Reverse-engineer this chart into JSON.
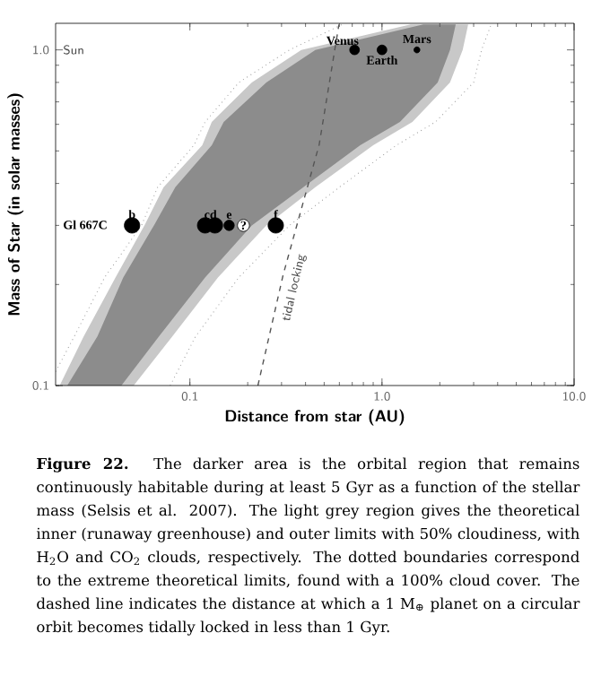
{
  "chart_data": {
    "type": "area",
    "log": "xy",
    "xlabel": "Distance from star   (AU)",
    "ylabel": "Mass of Star (in solar masses)",
    "xlim": [
      0.02,
      10
    ],
    "ylim": [
      0.1,
      1.2
    ],
    "xticks": [
      0.1,
      {
        "value": 1,
        "label": "1.0"
      },
      {
        "value": 10,
        "label": "10.0"
      }
    ],
    "yticks": [
      0.1,
      {
        "value": 1,
        "label": "1.0"
      }
    ],
    "series": [
      {
        "color": "#c8c8c8",
        "x": [
          0.021,
          0.028,
          0.041,
          0.058,
          0.073,
          0.116,
          0.13,
          0.21,
          0.38,
          1.41,
          2.81,
          2.63,
          2.26,
          1.44,
          0.9,
          0.45,
          0.25,
          0.14,
          0.081,
          0.051
        ],
        "values": [
          0.1,
          0.14,
          0.21,
          0.3,
          0.39,
          0.52,
          0.61,
          0.8,
          1.0,
          1.19,
          1.19,
          1.0,
          0.8,
          0.61,
          0.52,
          0.39,
          0.3,
          0.21,
          0.14,
          0.1
        ]
      },
      {
        "color": "#8c8c8c",
        "x": [
          0.023,
          0.033,
          0.045,
          0.065,
          0.084,
          0.13,
          0.15,
          0.25,
          0.45,
          1.64,
          2.42,
          2.26,
          1.95,
          1.24,
          0.77,
          0.39,
          0.21,
          0.12,
          0.069,
          0.044
        ],
        "values": [
          0.1,
          0.14,
          0.21,
          0.3,
          0.39,
          0.52,
          0.61,
          0.8,
          1.0,
          1.19,
          1.19,
          1.0,
          0.8,
          0.61,
          0.52,
          0.39,
          0.3,
          0.21,
          0.14,
          0.1
        ]
      },
      {
        "type": "line",
        "line_style": "dotted",
        "color": "#9a9a9a",
        "x": [
          0.02,
          0.025,
          0.036,
          0.056,
          0.068,
          0.105,
          0.12,
          0.18,
          0.33,
          0.62
        ],
        "values": [
          0.11,
          0.14,
          0.21,
          0.3,
          0.39,
          0.52,
          0.61,
          0.8,
          1.0,
          1.19
        ]
      },
      {
        "type": "line",
        "line_style": "dotted",
        "color": "#9a9a9a",
        "x": [
          0.079,
          0.107,
          0.18,
          0.33,
          0.6,
          1.19,
          1.9,
          3.0,
          3.3,
          3.7
        ],
        "values": [
          0.1,
          0.14,
          0.21,
          0.3,
          0.39,
          0.52,
          0.61,
          0.8,
          1.0,
          1.19
        ]
      },
      {
        "type": "line",
        "line_style": "dashed",
        "color": "#555555",
        "x": [
          0.226,
          0.306,
          0.471,
          0.597
        ],
        "values": [
          0.1,
          0.214,
          0.522,
          1.19
        ]
      },
      {
        "type": "bubble",
        "marker": "circle",
        "color": "#000000",
        "x": [
          0.05,
          0.12,
          0.135,
          0.16,
          0.19,
          0.28,
          0.72,
          1.0,
          1.52
        ],
        "values": [
          0.3,
          0.3,
          0.3,
          0.3,
          0.3,
          0.3,
          1.0,
          1.0,
          1.0
        ],
        "sizes": [
          1,
          1,
          1,
          0.45,
          0.6,
          1,
          0.4,
          0.4,
          0.15
        ],
        "colors": [
          "#000000",
          "#000000",
          "#000000",
          "#000000",
          "#ffffff",
          "#000000",
          "#000000",
          "#000000",
          "#000000"
        ]
      }
    ],
    "annotations": [
      "Sun",
      "Gl 667C",
      {
        "text": "b",
        "x": 0.05,
        "y": 0.3
      },
      {
        "text": "cd",
        "x": 0.128,
        "y": 0.3
      },
      {
        "text": "e",
        "x": 0.16,
        "y": 0.3
      },
      {
        "text": "?",
        "x": 0.19,
        "y": 0.3
      },
      {
        "text": "f",
        "x": 0.28,
        "y": 0.3
      },
      {
        "text": "Venus",
        "x": 0.72,
        "y": 1.0
      },
      {
        "text": "Earth",
        "x": 1.0,
        "y": 1.0
      },
      {
        "text": "Mars",
        "x": 1.52,
        "y": 1.0
      },
      "tidal locking",
      "**Figure 22.** The darker area is the orbital region that remains continuously habitable during at least 5 Gyr as a function of the stellar mass (Selsis et al. 2007). The light grey region gives the theoretical inner (runaway greenhouse) and outer limits with 50% cloudiness, with H$_{2}$O and CO$_{2}$ clouds, respectively. The dotted boundaries correspond to the extreme theoretical limits, found with a 100% cloud cover. The dashed line indicates the distance at which a 1 M$_{⊕}$ planet on a circular orbit becomes tidally locked in less than 1 Gyr."
    ]
  }
}
